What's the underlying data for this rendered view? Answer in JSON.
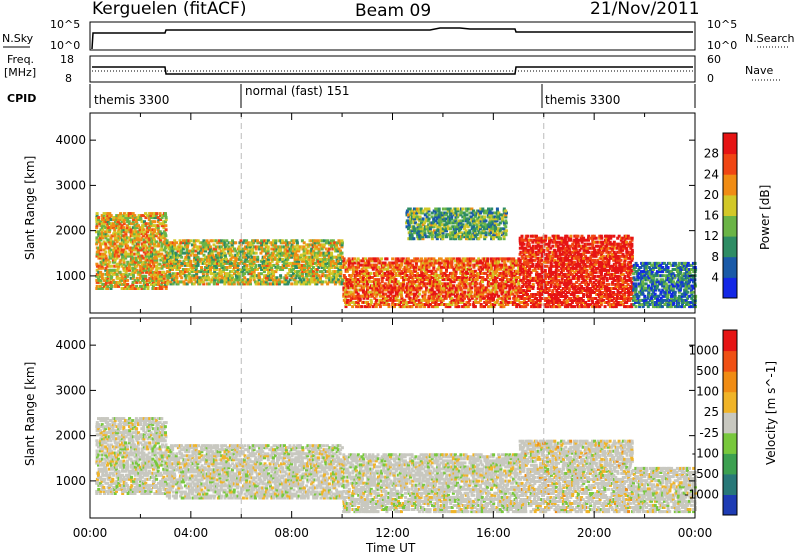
{
  "header": {
    "station": "Kerguelen (fitACF)",
    "beam": "Beam 09",
    "date": "21/Nov/2011"
  },
  "top_panels": {
    "nsky_label": "N.Sky",
    "nsky_ticks": [
      "10^5",
      "10^0"
    ],
    "nsearch_label": "N.Search",
    "nsearch_ticks": [
      "10^5",
      "10^0"
    ],
    "freq_label_line1": "Freq.",
    "freq_label_line2": "[MHz]",
    "freq_ticks": [
      "18",
      "8"
    ],
    "nave_label": "Nave",
    "nave_ticks": [
      "60",
      "0"
    ],
    "cpid_label": "CPID",
    "cpid_segments": [
      {
        "label": "themis 3300",
        "start_hour": 0,
        "end_hour": 6
      },
      {
        "label": "normal (fast) 151",
        "start_hour": 6,
        "end_hour": 18
      },
      {
        "label": "themis 3300",
        "start_hour": 18,
        "end_hour": 24
      }
    ]
  },
  "chart_data": [
    {
      "type": "heatmap",
      "title": "",
      "xlabel": "Time UT",
      "ylabel": "Slant Range [km]",
      "xlim": [
        0,
        24
      ],
      "ylim": [
        180,
        4600
      ],
      "x_ticks": [
        "00:00",
        "04:00",
        "08:00",
        "12:00",
        "16:00",
        "20:00",
        "00:00"
      ],
      "y_ticks": [
        "1000",
        "2000",
        "3000",
        "4000"
      ],
      "colorbar": {
        "label": "Power [dB]",
        "ticks": [
          "4",
          "8",
          "12",
          "16",
          "20",
          "24",
          "28"
        ],
        "range": [
          0,
          30
        ],
        "colors": [
          "#1428e6",
          "#1a5aa8",
          "#2e8c64",
          "#6ab446",
          "#d2c828",
          "#f08c14",
          "#f04614",
          "#e61414"
        ]
      },
      "echo_regions": [
        {
          "t0": 0.2,
          "t1": 3.0,
          "r0": 700,
          "r1": 2400,
          "level": 18
        },
        {
          "t0": 3.0,
          "t1": 10.0,
          "r0": 800,
          "r1": 1800,
          "level": 16
        },
        {
          "t0": 10.0,
          "t1": 17.0,
          "r0": 300,
          "r1": 1400,
          "level": 24
        },
        {
          "t0": 12.5,
          "t1": 16.5,
          "r0": 1800,
          "r1": 2500,
          "level": 12
        },
        {
          "t0": 17.0,
          "t1": 21.5,
          "r0": 300,
          "r1": 1900,
          "level": 28
        },
        {
          "t0": 21.5,
          "t1": 24.0,
          "r0": 300,
          "r1": 1300,
          "level": 8
        }
      ]
    },
    {
      "type": "heatmap",
      "title": "",
      "xlabel": "Time UT",
      "ylabel": "Slant Range [km]",
      "xlim": [
        0,
        24
      ],
      "ylim": [
        180,
        4600
      ],
      "x_ticks": [
        "00:00",
        "04:00",
        "08:00",
        "12:00",
        "16:00",
        "20:00",
        "00:00"
      ],
      "y_ticks": [
        "1000",
        "2000",
        "3000",
        "4000"
      ],
      "colorbar": {
        "label": "Velocity [m s^-1]",
        "ticks": [
          "1000",
          "500",
          "100",
          "25",
          "-25",
          "-100",
          "-500",
          "-1000"
        ],
        "range": [
          -1200,
          1200
        ],
        "colors": [
          "#1e3cb4",
          "#287878",
          "#3ca050",
          "#78c83c",
          "#c8c8c0",
          "#f0b428",
          "#f08c14",
          "#f05014",
          "#e61414"
        ]
      },
      "echo_regions": [
        {
          "t0": 0.2,
          "t1": 3.0,
          "r0": 700,
          "r1": 2400,
          "level": 0
        },
        {
          "t0": 3.0,
          "t1": 10.0,
          "r0": 600,
          "r1": 1800,
          "level": 0
        },
        {
          "t0": 10.0,
          "t1": 17.0,
          "r0": 300,
          "r1": 1600,
          "level": 0
        },
        {
          "t0": 17.0,
          "t1": 21.5,
          "r0": 300,
          "r1": 1900,
          "level": 100
        },
        {
          "t0": 21.5,
          "t1": 24.0,
          "r0": 300,
          "r1": 1300,
          "level": 0
        }
      ]
    }
  ]
}
